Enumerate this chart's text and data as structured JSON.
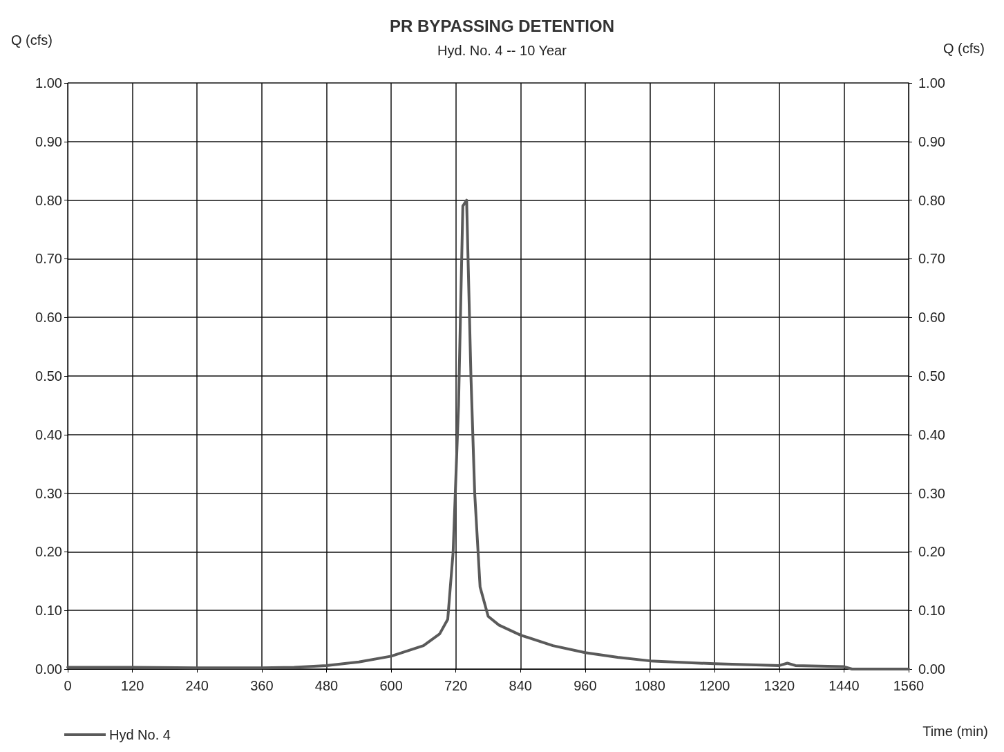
{
  "chart_data": {
    "type": "line",
    "title": "PR BYPASSING DETENTION",
    "subtitle": "Hyd. No. 4 -- 10 Year",
    "xlabel": "Time (min)",
    "ylabel": "Q (cfs)",
    "y2label": "Q (cfs)",
    "x": [
      0,
      120,
      240,
      360,
      420,
      480,
      540,
      600,
      660,
      690,
      705,
      715,
      725,
      733,
      740,
      748,
      755,
      765,
      780,
      800,
      840,
      900,
      960,
      1020,
      1080,
      1200,
      1320,
      1335,
      1350,
      1440,
      1455,
      1560
    ],
    "series": [
      {
        "name": "Hyd No. 4",
        "color": "#5a5a5a",
        "values": [
          0.003,
          0.003,
          0.002,
          0.002,
          0.003,
          0.006,
          0.012,
          0.022,
          0.04,
          0.06,
          0.085,
          0.2,
          0.45,
          0.79,
          0.8,
          0.5,
          0.3,
          0.14,
          0.09,
          0.075,
          0.058,
          0.04,
          0.028,
          0.02,
          0.014,
          0.009,
          0.006,
          0.01,
          0.006,
          0.004,
          0,
          0
        ]
      }
    ],
    "xlim": [
      0,
      1560
    ],
    "xticks": [
      0,
      120,
      240,
      360,
      480,
      600,
      720,
      840,
      960,
      1080,
      1200,
      1320,
      1440,
      1560
    ],
    "ylim": [
      0,
      1
    ],
    "yticks": [
      {
        "value": 0,
        "label": "0.00"
      },
      {
        "value": 0.1,
        "label": "0.10"
      },
      {
        "value": 0.2,
        "label": "0.20"
      },
      {
        "value": 0.3,
        "label": "0.30"
      },
      {
        "value": 0.4,
        "label": "0.40"
      },
      {
        "value": 0.5,
        "label": "0.50"
      },
      {
        "value": 0.6,
        "label": "0.60"
      },
      {
        "value": 0.7,
        "label": "0.70"
      },
      {
        "value": 0.8,
        "label": "0.80"
      },
      {
        "value": 0.9,
        "label": "0.90"
      },
      {
        "value": 1,
        "label": "1.00"
      }
    ],
    "y2lim": [
      0,
      1
    ],
    "y2ticks": [
      {
        "value": 0,
        "label": "0.00"
      },
      {
        "value": 0.1,
        "label": "0.10"
      },
      {
        "value": 0.2,
        "label": "0.20"
      },
      {
        "value": 0.3,
        "label": "0.30"
      },
      {
        "value": 0.4,
        "label": "0.40"
      },
      {
        "value": 0.5,
        "label": "0.50"
      },
      {
        "value": 0.6,
        "label": "0.60"
      },
      {
        "value": 0.7,
        "label": "0.70"
      },
      {
        "value": 0.8,
        "label": "0.80"
      },
      {
        "value": 0.9,
        "label": "0.90"
      },
      {
        "value": 1,
        "label": "1.00"
      }
    ],
    "grid": true,
    "legend": "bottom left",
    "marker": "none",
    "line_style": "solid"
  }
}
